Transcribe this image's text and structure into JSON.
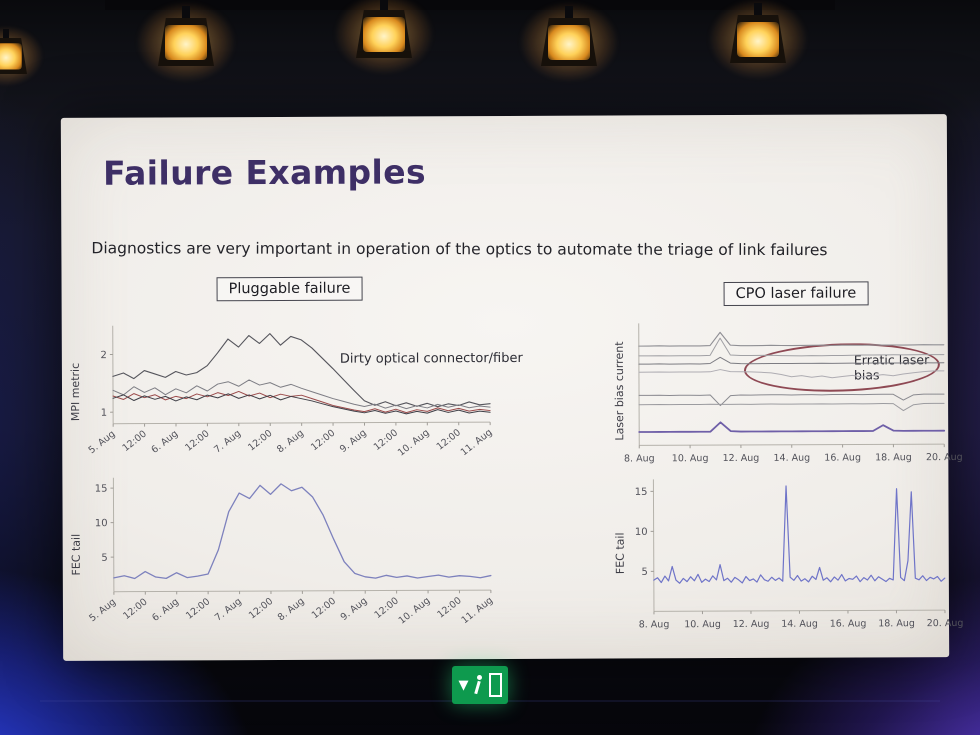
{
  "slide": {
    "title": "Failure Examples",
    "subtitle": "Diagnostics are very important in operation of the optics to automate the triage of link failures",
    "left": {
      "badge": "Pluggable failure",
      "annotation": "Dirty optical connector/fiber"
    },
    "right": {
      "badge": "CPO laser failure",
      "annotation": "Erratic laser bias"
    }
  },
  "chart_data": [
    {
      "type": "line",
      "ylabel": "MPI metric",
      "xticks": [
        "5. Aug",
        "12:00",
        "6. Aug",
        "12:00",
        "7. Aug",
        "12:00",
        "8. Aug",
        "12:00",
        "9. Aug",
        "12:00",
        "10. Aug",
        "12:00",
        "11. Aug"
      ],
      "yticks": [
        1,
        2
      ],
      "ylim": [
        0.8,
        2.5
      ],
      "series": [
        {
          "color": "#55555c",
          "width": 1.1,
          "values": [
            1.62,
            1.68,
            1.58,
            1.72,
            1.66,
            1.6,
            1.7,
            1.64,
            1.68,
            1.8,
            2.02,
            2.26,
            2.12,
            2.32,
            2.18,
            2.35,
            2.15,
            2.3,
            2.24,
            2.1,
            1.92,
            1.74,
            1.55,
            1.36,
            1.18,
            1.1,
            1.16,
            1.09,
            1.14,
            1.08,
            1.13,
            1.07,
            1.12,
            1.09,
            1.15,
            1.1,
            1.12
          ]
        },
        {
          "color": "#7d7d84",
          "width": 1.0,
          "values": [
            1.38,
            1.3,
            1.44,
            1.34,
            1.42,
            1.3,
            1.4,
            1.33,
            1.45,
            1.36,
            1.48,
            1.52,
            1.44,
            1.55,
            1.46,
            1.5,
            1.42,
            1.47,
            1.4,
            1.34,
            1.28,
            1.22,
            1.17,
            1.12,
            1.08,
            1.12,
            1.05,
            1.1,
            1.04,
            1.09,
            1.05,
            1.11,
            1.06,
            1.1,
            1.05,
            1.08,
            1.06
          ]
        },
        {
          "color": "#9b4a4a",
          "width": 1.0,
          "values": [
            1.28,
            1.22,
            1.32,
            1.25,
            1.3,
            1.21,
            1.27,
            1.23,
            1.31,
            1.26,
            1.33,
            1.28,
            1.35,
            1.27,
            1.32,
            1.24,
            1.3,
            1.26,
            1.28,
            1.22,
            1.16,
            1.1,
            1.06,
            1.02,
            0.99,
            1.04,
            0.98,
            1.03,
            0.97,
            1.02,
            0.99,
            1.05,
            1.0,
            1.04,
            0.99,
            1.02,
            1.0
          ]
        },
        {
          "color": "#3f3f47",
          "width": 1.0,
          "values": [
            1.24,
            1.3,
            1.2,
            1.28,
            1.22,
            1.27,
            1.19,
            1.26,
            1.21,
            1.29,
            1.24,
            1.31,
            1.23,
            1.29,
            1.22,
            1.28,
            1.2,
            1.26,
            1.22,
            1.18,
            1.13,
            1.08,
            1.04,
            1.0,
            0.97,
            1.01,
            0.96,
            1.0,
            0.95,
            0.99,
            0.96,
            1.02,
            0.97,
            1.01,
            0.96,
            0.99,
            0.97
          ]
        }
      ]
    },
    {
      "type": "line",
      "ylabel": "FEC tail",
      "xticks": [
        "5. Aug",
        "12:00",
        "6. Aug",
        "12:00",
        "7. Aug",
        "12:00",
        "8. Aug",
        "12:00",
        "9. Aug",
        "12:00",
        "10. Aug",
        "12:00",
        "11. Aug"
      ],
      "yticks": [
        5,
        10,
        15
      ],
      "ylim": [
        0,
        16.5
      ],
      "series": [
        {
          "color": "#7d81bd",
          "width": 1.3,
          "values": [
            2.0,
            2.3,
            1.9,
            2.9,
            2.1,
            1.9,
            2.7,
            2.0,
            2.2,
            2.5,
            6.0,
            11.5,
            14.2,
            13.4,
            15.3,
            14.0,
            15.5,
            14.5,
            15.0,
            13.6,
            11.0,
            7.5,
            4.2,
            2.5,
            2.0,
            1.8,
            2.2,
            1.9,
            2.1,
            1.8,
            2.0,
            2.2,
            1.9,
            2.1,
            2.0,
            1.8,
            2.1
          ]
        }
      ]
    },
    {
      "type": "line",
      "ylabel": "Laser bias current",
      "xticks": [
        "8. Aug",
        "10. Aug",
        "12. Aug",
        "14. Aug",
        "16. Aug",
        "18. Aug",
        "20. Aug"
      ],
      "yticks": [],
      "ylim": [
        0,
        10.5
      ],
      "series": [
        {
          "color": "#8f8f94",
          "width": 1.1,
          "values": [
            8.55,
            8.55,
            8.56,
            8.54,
            8.55,
            8.55,
            8.54,
            8.56,
            9.7,
            8.6,
            8.55,
            8.54,
            8.55,
            8.56,
            8.55,
            8.54,
            8.55,
            8.55,
            8.56,
            8.54,
            8.55,
            8.55,
            8.54,
            8.56,
            8.55,
            8.55,
            8.54,
            8.55,
            8.56,
            8.55,
            8.55
          ]
        },
        {
          "color": "#a0a0a4",
          "width": 1.0,
          "values": [
            7.7,
            7.7,
            7.71,
            7.69,
            7.7,
            7.7,
            7.69,
            7.72,
            9.2,
            7.75,
            7.7,
            7.69,
            7.7,
            7.71,
            7.68,
            7.66,
            7.64,
            7.66,
            7.65,
            7.67,
            7.66,
            7.68,
            7.7,
            7.69,
            7.7,
            7.7,
            7.69,
            7.7,
            7.71,
            7.7,
            7.7
          ]
        },
        {
          "color": "#7c7c82",
          "width": 1.0,
          "values": [
            7.0,
            7.0,
            7.01,
            6.99,
            7.0,
            7.0,
            6.99,
            7.02,
            7.55,
            7.05,
            7.0,
            6.99,
            7.0,
            7.01,
            7.0,
            6.99,
            7.0,
            7.0,
            7.01,
            6.99,
            7.0,
            7.0,
            6.99,
            7.01,
            7.0,
            7.0,
            6.99,
            7.0,
            7.01,
            7.0,
            7.0
          ]
        },
        {
          "color": "#aeacb2",
          "width": 1.0,
          "values": [
            6.3,
            6.3,
            6.31,
            6.29,
            6.3,
            6.3,
            6.29,
            6.31,
            6.5,
            6.32,
            6.3,
            6.28,
            6.25,
            6.2,
            6.05,
            5.85,
            5.95,
            5.8,
            5.9,
            5.75,
            5.85,
            5.95,
            5.8,
            5.9,
            6.0,
            5.9,
            6.05,
            6.15,
            6.25,
            6.3,
            6.3
          ]
        },
        {
          "color": "#8a8a90",
          "width": 1.0,
          "values": [
            4.3,
            4.3,
            4.31,
            4.29,
            4.3,
            4.3,
            4.29,
            4.31,
            3.4,
            4.25,
            4.3,
            4.29,
            4.3,
            4.31,
            4.3,
            4.29,
            4.3,
            4.3,
            4.29,
            4.31,
            4.3,
            4.3,
            4.29,
            4.3,
            4.31,
            4.3,
            3.8,
            4.25,
            4.3,
            4.3,
            4.3
          ]
        },
        {
          "color": "#9c9ca0",
          "width": 1.0,
          "values": [
            3.5,
            3.5,
            3.51,
            3.49,
            3.5,
            3.5,
            3.49,
            3.51,
            3.5,
            3.5,
            3.5,
            3.49,
            3.5,
            3.51,
            3.5,
            3.49,
            3.5,
            3.5,
            3.51,
            3.49,
            3.5,
            3.5,
            3.49,
            3.5,
            3.51,
            3.5,
            2.9,
            3.4,
            3.5,
            3.5,
            3.5
          ]
        },
        {
          "color": "#6f5fa8",
          "width": 1.8,
          "values": [
            1.15,
            1.15,
            1.15,
            1.15,
            1.15,
            1.15,
            1.15,
            1.15,
            1.95,
            1.2,
            1.15,
            1.15,
            1.15,
            1.15,
            1.15,
            1.15,
            1.15,
            1.15,
            1.15,
            1.15,
            1.15,
            1.15,
            1.15,
            1.15,
            1.65,
            1.18,
            1.15,
            1.15,
            1.15,
            1.15,
            1.15
          ]
        }
      ]
    },
    {
      "type": "line",
      "ylabel": "FEC tail",
      "xticks": [
        "8. Aug",
        "10. Aug",
        "12. Aug",
        "14. Aug",
        "16. Aug",
        "18. Aug",
        "20. Aug"
      ],
      "yticks": [
        5,
        10,
        15
      ],
      "ylim": [
        0,
        16.5
      ],
      "series": [
        {
          "color": "#6f74c8",
          "width": 1.2,
          "values": [
            3.9,
            4.2,
            3.6,
            4.4,
            3.8,
            5.6,
            3.9,
            3.5,
            4.1,
            3.7,
            4.3,
            3.8,
            4.6,
            3.6,
            4.0,
            3.7,
            4.4,
            3.9,
            5.8,
            3.8,
            4.1,
            3.6,
            4.2,
            3.9,
            3.5,
            4.3,
            3.8,
            4.0,
            3.6,
            4.5,
            3.9,
            3.7,
            4.2,
            3.8,
            4.1,
            3.7,
            15.6,
            4.2,
            3.8,
            4.4,
            3.7,
            4.0,
            3.6,
            4.3,
            3.9,
            5.4,
            3.8,
            4.1,
            3.6,
            4.2,
            3.8,
            4.5,
            3.7,
            4.0,
            3.9,
            4.3,
            3.6,
            4.1,
            3.8,
            4.4,
            3.7,
            4.2,
            3.9,
            3.6,
            4.0,
            3.8,
            15.2,
            4.1,
            3.7,
            6.2,
            14.8,
            4.0,
            3.8,
            4.3,
            3.7,
            4.1,
            3.9,
            4.2,
            3.6,
            4.0
          ]
        }
      ]
    }
  ]
}
